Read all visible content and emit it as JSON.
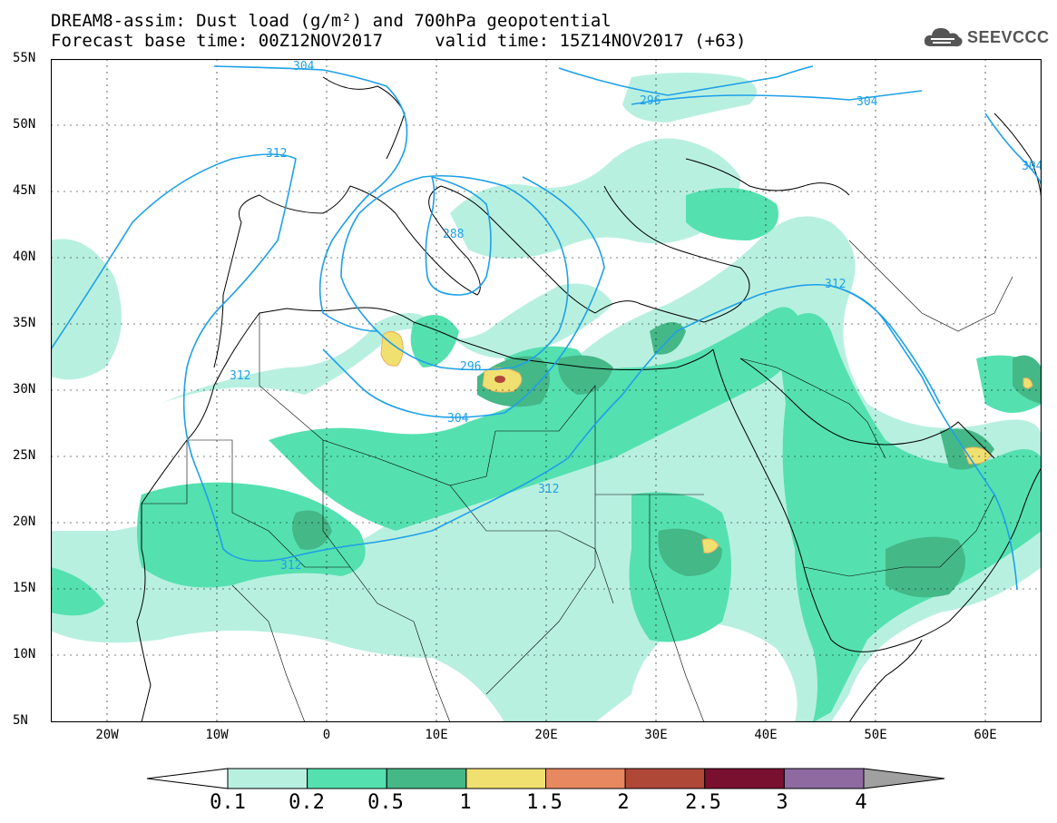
{
  "header": {
    "title_line1": "DREAM8-assim: Dust load (g/m²) and 700hPa geopotential",
    "title_line2": "Forecast base time: 00Z12NOV2017     valid time: 15Z14NOV2017 (+63)"
  },
  "logo": {
    "text": "SEEVCCC",
    "icon": "cloud-icon"
  },
  "map": {
    "lat_labels": [
      "55N",
      "50N",
      "45N",
      "40N",
      "35N",
      "30N",
      "25N",
      "20N",
      "15N",
      "10N",
      "5N"
    ],
    "lon_labels": [
      "20W",
      "10W",
      "0",
      "10E",
      "20E",
      "30E",
      "40E",
      "50E",
      "60E"
    ],
    "contour_labels": [
      "304",
      "312",
      "288",
      "296",
      "304",
      "312",
      "312",
      "312",
      "296",
      "304",
      "312",
      "304"
    ]
  },
  "colorbar": {
    "labels": [
      "0.1",
      "0.2",
      "0.5",
      "1",
      "1.5",
      "2",
      "2.5",
      "3",
      "4"
    ],
    "colors": [
      "#b8f0e0",
      "#55e0b0",
      "#45b888",
      "#f0e070",
      "#e88860",
      "#b04838",
      "#7a1030",
      "#8e6aa0"
    ],
    "under_color": "#ffffff",
    "over_color": "#a0a0a0"
  },
  "colors": {
    "contour": "#1ea0e8",
    "coast": "#000000"
  }
}
